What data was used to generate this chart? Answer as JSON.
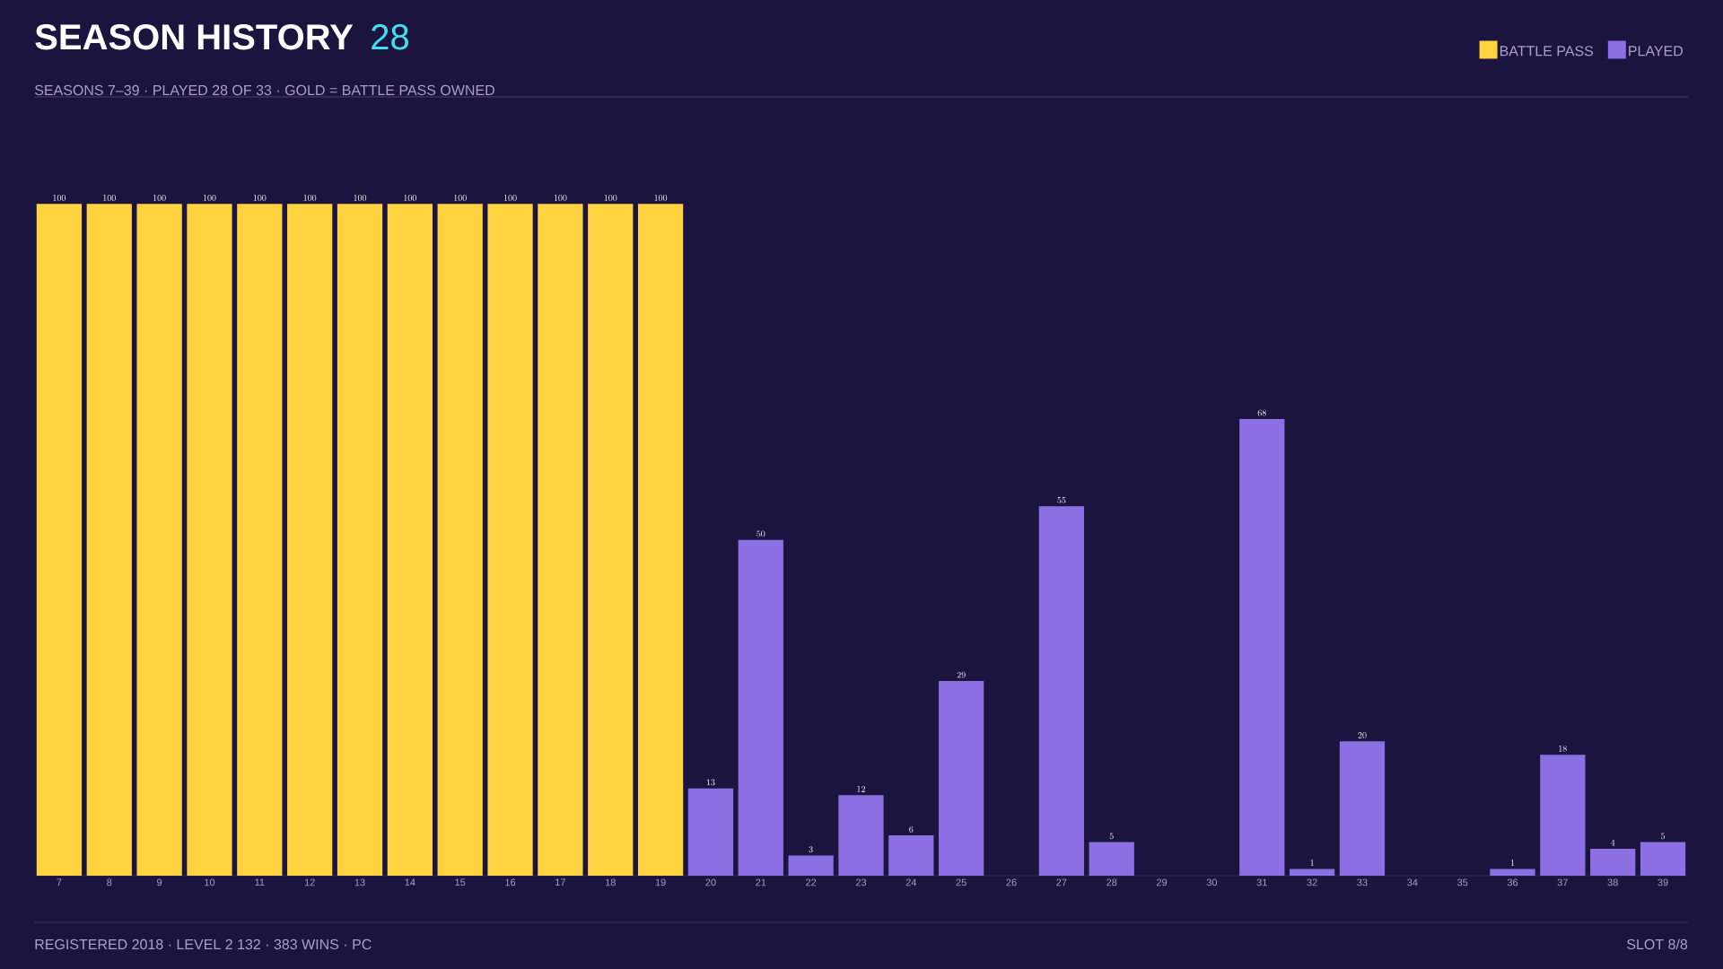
{
  "chart_data": {
    "type": "bar",
    "title": "SEASON HISTORY",
    "subtitle": "SEASONS 7–39 · PLAYED 28 OF 33 · GOLD = BATTLE PASS OWNED",
    "annotations": [
      "28",
      "REGISTERED 2018 · LEVEL 2 132 · 383 WINS · PC",
      "SLOT 8/8"
    ],
    "categories": [
      "7",
      "8",
      "9",
      "10",
      "11",
      "12",
      "13",
      "14",
      "15",
      "16",
      "17",
      "18",
      "19",
      "20",
      "21",
      "22",
      "23",
      "24",
      "25",
      "26",
      "27",
      "28",
      "29",
      "30",
      "31",
      "32",
      "33",
      "34",
      "35",
      "36",
      "37",
      "38",
      "39"
    ],
    "series": [
      {
        "name": "BATTLE PASS",
        "color": "#ffd23f",
        "values": [
          100,
          100,
          100,
          100,
          100,
          100,
          100,
          100,
          100,
          100,
          100,
          100,
          100,
          null,
          null,
          null,
          null,
          null,
          null,
          null,
          null,
          null,
          null,
          null,
          null,
          null,
          null,
          null,
          null,
          null,
          null,
          null,
          null
        ]
      },
      {
        "name": "PLAYED",
        "color": "#8c6fe3",
        "values": [
          null,
          null,
          null,
          null,
          null,
          null,
          null,
          null,
          null,
          null,
          null,
          null,
          null,
          13,
          50,
          3,
          12,
          6,
          29,
          null,
          55,
          5,
          null,
          null,
          68,
          1,
          20,
          null,
          null,
          1,
          18,
          4,
          5
        ]
      }
    ],
    "data_labels": true,
    "legend": "top right"
  }
}
